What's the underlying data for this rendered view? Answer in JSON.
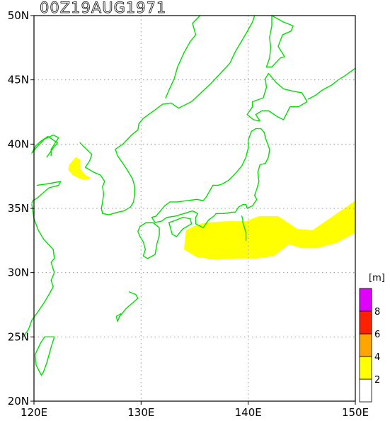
{
  "map": {
    "title": "00Z19AUG1971",
    "lon_range": [
      120,
      150
    ],
    "lat_range": [
      20,
      50
    ],
    "lon_ticks": [
      {
        "value": 120,
        "label": "120E"
      },
      {
        "value": 130,
        "label": "130E"
      },
      {
        "value": 140,
        "label": "140E"
      },
      {
        "value": 150,
        "label": "150E"
      }
    ],
    "lat_ticks": [
      {
        "value": 20,
        "label": "20N"
      },
      {
        "value": 25,
        "label": "25N"
      },
      {
        "value": 30,
        "label": "30N"
      },
      {
        "value": 35,
        "label": "35N"
      },
      {
        "value": 40,
        "label": "40N"
      },
      {
        "value": 45,
        "label": "45N"
      },
      {
        "value": 50,
        "label": "50N"
      }
    ],
    "grid": true,
    "coastline_color": "#00e000"
  },
  "legend": {
    "unit": "[m]",
    "placement": "bottom-right",
    "levels": [
      {
        "min": 0,
        "max": 2,
        "color": "#ffffff"
      },
      {
        "min": 2,
        "max": 4,
        "color": "#ffff00"
      },
      {
        "min": 4,
        "max": 6,
        "color": "#ffa500"
      },
      {
        "min": 6,
        "max": 8,
        "color": "#ff2000"
      },
      {
        "min": 8,
        "max": 10,
        "color": "#e000ff"
      }
    ],
    "tick_labels": [
      "2",
      "4",
      "6",
      "8"
    ]
  },
  "regions": [
    {
      "name": "bohai-sea-wave-area",
      "level": "2-4 m",
      "color": "#ffff00",
      "polygon": [
        [
          123.3,
          38.4
        ],
        [
          123.9,
          39.0
        ],
        [
          124.3,
          38.8
        ],
        [
          124.3,
          38.1
        ],
        [
          124.8,
          37.6
        ],
        [
          125.3,
          37.4
        ],
        [
          124.9,
          37.2
        ],
        [
          124.3,
          37.3
        ],
        [
          123.6,
          37.6
        ],
        [
          123.2,
          38.0
        ]
      ]
    },
    {
      "name": "pacific-wave-area",
      "level": "2-4 m",
      "color": "#ffff00",
      "polygon": [
        [
          134.2,
          33.3
        ],
        [
          134.9,
          33.6
        ],
        [
          136.0,
          33.9
        ],
        [
          138.0,
          34.0
        ],
        [
          139.8,
          34.0
        ],
        [
          141.0,
          34.4
        ],
        [
          142.8,
          34.4
        ],
        [
          144.6,
          33.4
        ],
        [
          146.0,
          33.3
        ],
        [
          147.4,
          34.1
        ],
        [
          148.8,
          34.9
        ],
        [
          150.0,
          35.6
        ],
        [
          150.0,
          33.1
        ],
        [
          148.2,
          32.3
        ],
        [
          146.4,
          31.9
        ],
        [
          145.0,
          31.9
        ],
        [
          143.8,
          32.2
        ],
        [
          142.4,
          31.3
        ],
        [
          140.8,
          31.1
        ],
        [
          138.8,
          31.1
        ],
        [
          137.0,
          31.0
        ],
        [
          135.2,
          31.2
        ],
        [
          134.0,
          31.8
        ]
      ]
    }
  ],
  "coastlines": [
    {
      "name": "korea-china-coast",
      "points": [
        [
          120.3,
          36.8
        ],
        [
          121.2,
          36.9
        ],
        [
          122.5,
          37.1
        ],
        [
          122.3,
          36.8
        ],
        [
          121.4,
          36.6
        ],
        [
          120.7,
          36.1
        ],
        [
          120.3,
          35.8
        ],
        [
          119.9,
          35.6
        ],
        [
          119.8,
          35.4
        ]
      ]
    },
    {
      "name": "liaodong-coast",
      "points": [
        [
          121.2,
          39.0
        ],
        [
          121.8,
          39.7
        ],
        [
          122.2,
          40.1
        ],
        [
          121.3,
          40.6
        ],
        [
          120.6,
          40.2
        ],
        [
          120.2,
          39.9
        ],
        [
          120.0,
          39.6
        ],
        [
          119.8,
          39.3
        ],
        [
          120.4,
          39.9
        ],
        [
          121.0,
          40.4
        ],
        [
          121.8,
          40.7
        ],
        [
          122.3,
          40.5
        ],
        [
          121.6,
          39.6
        ],
        [
          121.6,
          39.1
        ]
      ]
    },
    {
      "name": "korea-west-coast",
      "points": [
        [
          124.3,
          40.1
        ],
        [
          124.9,
          39.6
        ],
        [
          125.4,
          39.2
        ],
        [
          125.2,
          38.7
        ],
        [
          124.8,
          38.2
        ],
        [
          125.6,
          37.8
        ],
        [
          126.2,
          37.6
        ],
        [
          126.6,
          37.1
        ],
        [
          126.4,
          36.7
        ],
        [
          126.5,
          36.1
        ],
        [
          126.4,
          35.5
        ],
        [
          126.3,
          35.0
        ],
        [
          126.4,
          34.6
        ],
        [
          127.0,
          34.5
        ],
        [
          127.8,
          34.7
        ],
        [
          128.4,
          34.8
        ],
        [
          129.0,
          35.1
        ],
        [
          129.3,
          35.5
        ],
        [
          129.4,
          36.1
        ],
        [
          129.4,
          36.7
        ],
        [
          129.2,
          37.3
        ],
        [
          128.7,
          38.0
        ],
        [
          128.3,
          38.5
        ],
        [
          127.8,
          39.1
        ],
        [
          127.6,
          39.6
        ],
        [
          128.3,
          40.0
        ],
        [
          129.1,
          40.7
        ],
        [
          129.7,
          41.1
        ],
        [
          129.8,
          41.6
        ],
        [
          130.2,
          42.0
        ],
        [
          130.7,
          42.3
        ],
        [
          131.2,
          42.6
        ],
        [
          132.0,
          43.1
        ],
        [
          132.8,
          43.2
        ],
        [
          133.5,
          42.8
        ],
        [
          134.7,
          43.3
        ],
        [
          135.6,
          44.0
        ],
        [
          136.5,
          44.7
        ],
        [
          137.4,
          45.5
        ],
        [
          138.3,
          46.3
        ],
        [
          138.8,
          47.2
        ],
        [
          139.3,
          47.9
        ],
        [
          139.8,
          48.6
        ],
        [
          140.4,
          49.5
        ],
        [
          140.6,
          50.0
        ]
      ]
    },
    {
      "name": "honshu",
      "points": [
        [
          131.0,
          34.3
        ],
        [
          131.4,
          34.4
        ],
        [
          132.2,
          35.2
        ],
        [
          132.7,
          35.5
        ],
        [
          133.4,
          35.5
        ],
        [
          134.3,
          35.6
        ],
        [
          135.2,
          35.7
        ],
        [
          135.8,
          35.6
        ],
        [
          136.1,
          35.9
        ],
        [
          136.7,
          36.8
        ],
        [
          137.2,
          36.8
        ],
        [
          137.6,
          36.9
        ],
        [
          138.2,
          37.2
        ],
        [
          138.9,
          37.8
        ],
        [
          139.4,
          38.3
        ],
        [
          139.8,
          39.0
        ],
        [
          140.0,
          39.7
        ],
        [
          140.0,
          40.3
        ],
        [
          140.3,
          41.0
        ],
        [
          140.7,
          41.2
        ],
        [
          141.2,
          41.2
        ],
        [
          141.5,
          40.9
        ],
        [
          141.6,
          40.5
        ],
        [
          142.0,
          39.6
        ],
        [
          141.9,
          39.0
        ],
        [
          141.6,
          38.5
        ],
        [
          141.1,
          38.4
        ],
        [
          140.9,
          37.8
        ],
        [
          141.0,
          37.1
        ],
        [
          140.8,
          36.5
        ],
        [
          140.6,
          36.0
        ],
        [
          140.8,
          35.7
        ],
        [
          140.4,
          35.2
        ],
        [
          139.9,
          35.0
        ],
        [
          139.8,
          35.3
        ],
        [
          139.5,
          35.3
        ],
        [
          139.1,
          35.1
        ],
        [
          138.8,
          34.7
        ],
        [
          138.4,
          34.7
        ],
        [
          137.8,
          34.6
        ],
        [
          137.0,
          34.6
        ],
        [
          136.8,
          34.4
        ],
        [
          136.3,
          34.1
        ],
        [
          135.8,
          33.5
        ],
        [
          135.1,
          33.8
        ],
        [
          135.1,
          34.3
        ],
        [
          135.3,
          34.6
        ],
        [
          134.8,
          34.8
        ],
        [
          134.0,
          34.6
        ],
        [
          133.2,
          34.4
        ],
        [
          132.4,
          34.3
        ],
        [
          131.9,
          34.0
        ],
        [
          131.3,
          33.9
        ],
        [
          131.0,
          34.3
        ]
      ]
    },
    {
      "name": "hokkaido",
      "points": [
        [
          139.9,
          42.3
        ],
        [
          140.5,
          41.9
        ],
        [
          141.1,
          41.8
        ],
        [
          140.7,
          42.3
        ],
        [
          141.3,
          42.6
        ],
        [
          141.9,
          42.6
        ],
        [
          142.8,
          42.1
        ],
        [
          143.3,
          41.9
        ],
        [
          143.9,
          42.9
        ],
        [
          144.7,
          42.9
        ],
        [
          145.5,
          43.3
        ],
        [
          145.3,
          43.6
        ],
        [
          145.0,
          44.0
        ],
        [
          144.3,
          44.1
        ],
        [
          143.3,
          44.3
        ],
        [
          142.6,
          44.8
        ],
        [
          141.9,
          45.5
        ],
        [
          141.6,
          45.1
        ],
        [
          141.7,
          44.4
        ],
        [
          141.4,
          43.6
        ],
        [
          140.4,
          43.3
        ],
        [
          140.4,
          42.9
        ],
        [
          139.9,
          42.3
        ]
      ]
    },
    {
      "name": "shikoku",
      "points": [
        [
          132.6,
          33.9
        ],
        [
          132.9,
          33.0
        ],
        [
          133.3,
          32.8
        ],
        [
          133.9,
          33.4
        ],
        [
          134.7,
          33.8
        ],
        [
          134.6,
          34.2
        ],
        [
          133.9,
          34.3
        ],
        [
          133.0,
          34.0
        ],
        [
          132.6,
          33.9
        ]
      ]
    },
    {
      "name": "kyushu",
      "points": [
        [
          129.9,
          33.6
        ],
        [
          130.5,
          33.9
        ],
        [
          131.1,
          33.9
        ],
        [
          131.7,
          33.5
        ],
        [
          131.7,
          32.9
        ],
        [
          131.5,
          32.3
        ],
        [
          131.3,
          31.4
        ],
        [
          130.6,
          31.1
        ],
        [
          130.2,
          31.3
        ],
        [
          130.4,
          31.8
        ],
        [
          130.2,
          32.4
        ],
        [
          129.9,
          32.8
        ],
        [
          129.7,
          33.2
        ],
        [
          129.9,
          33.6
        ]
      ]
    },
    {
      "name": "sakhalin",
      "points": [
        [
          141.7,
          46.0
        ],
        [
          142.0,
          46.7
        ],
        [
          142.1,
          47.5
        ],
        [
          142.0,
          48.3
        ],
        [
          142.2,
          49.2
        ],
        [
          142.2,
          50.0
        ],
        [
          143.3,
          49.5
        ],
        [
          144.2,
          49.2
        ],
        [
          144.0,
          48.8
        ],
        [
          143.2,
          48.5
        ],
        [
          142.8,
          47.6
        ],
        [
          143.4,
          46.8
        ],
        [
          143.0,
          46.7
        ],
        [
          142.2,
          46.0
        ],
        [
          141.7,
          46.0
        ]
      ]
    },
    {
      "name": "kuril-islands",
      "points": [
        [
          145.6,
          43.5
        ],
        [
          146.3,
          43.8
        ],
        [
          146.9,
          44.2
        ],
        [
          147.8,
          44.6
        ],
        [
          148.4,
          45.0
        ],
        [
          149.0,
          45.3
        ],
        [
          149.5,
          45.6
        ],
        [
          150.0,
          45.9
        ]
      ]
    },
    {
      "name": "taiwan",
      "points": [
        [
          121.0,
          25.0
        ],
        [
          121.9,
          25.0
        ],
        [
          121.6,
          24.2
        ],
        [
          121.2,
          23.0
        ],
        [
          120.9,
          22.3
        ],
        [
          120.7,
          22.0
        ],
        [
          120.2,
          22.8
        ],
        [
          120.1,
          23.6
        ],
        [
          120.6,
          24.5
        ],
        [
          121.0,
          25.0
        ]
      ]
    },
    {
      "name": "china-east-coast",
      "points": [
        [
          119.8,
          35.3
        ],
        [
          120.0,
          34.2
        ],
        [
          120.4,
          33.3
        ],
        [
          120.9,
          32.6
        ],
        [
          121.8,
          31.8
        ],
        [
          121.9,
          31.1
        ],
        [
          121.6,
          30.8
        ],
        [
          121.9,
          30.0
        ],
        [
          121.6,
          29.4
        ],
        [
          121.8,
          28.9
        ],
        [
          121.4,
          28.3
        ],
        [
          120.9,
          27.6
        ],
        [
          120.4,
          27.0
        ],
        [
          119.8,
          26.3
        ],
        [
          119.5,
          25.6
        ],
        [
          119.0,
          25.0
        ]
      ]
    },
    {
      "name": "ryukyu-islands",
      "points": [
        [
          128.9,
          28.5
        ],
        [
          129.5,
          28.3
        ],
        [
          129.7,
          28.0
        ],
        [
          128.6,
          27.2
        ],
        [
          128.0,
          26.6
        ],
        [
          127.8,
          26.2
        ],
        [
          127.7,
          26.6
        ],
        [
          128.1,
          26.8
        ]
      ]
    },
    {
      "name": "izu-islands",
      "points": [
        [
          139.4,
          34.4
        ],
        [
          139.5,
          34.1
        ],
        [
          139.5,
          33.9
        ],
        [
          139.8,
          33.1
        ],
        [
          139.8,
          32.5
        ]
      ]
    },
    {
      "name": "primorye-interior",
      "points": [
        [
          132.3,
          43.6
        ],
        [
          132.6,
          44.2
        ],
        [
          133.1,
          45.1
        ],
        [
          133.4,
          46.0
        ],
        [
          134.0,
          47.1
        ],
        [
          134.6,
          48.0
        ],
        [
          135.1,
          48.5
        ],
        [
          134.8,
          49.4
        ],
        [
          135.5,
          50.0
        ]
      ]
    }
  ]
}
